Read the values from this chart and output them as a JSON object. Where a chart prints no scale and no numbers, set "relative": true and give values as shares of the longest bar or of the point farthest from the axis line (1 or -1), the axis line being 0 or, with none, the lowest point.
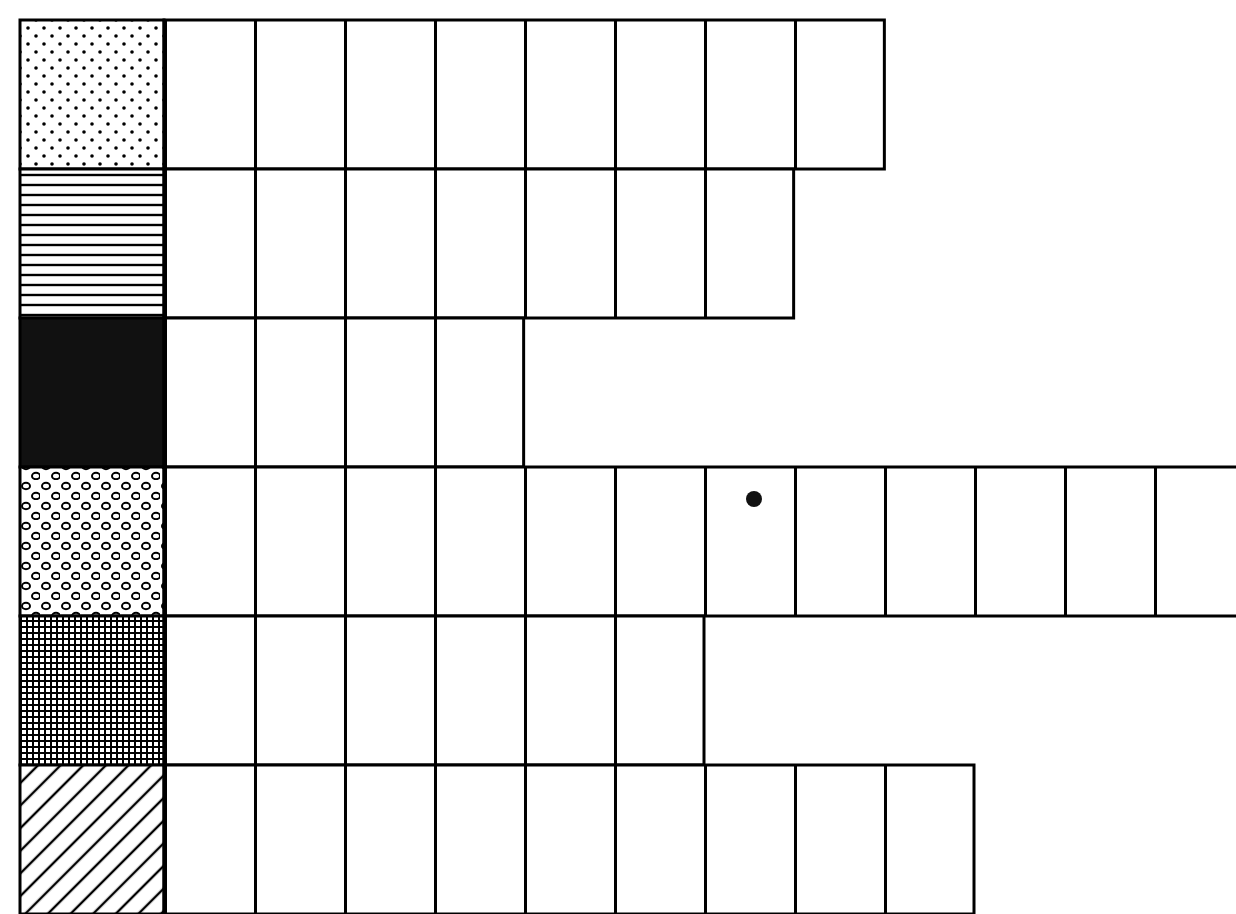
{
  "chart_data": {
    "type": "bar",
    "orientation": "horizontal",
    "relative": true,
    "categories": [
      null,
      null,
      null,
      null,
      null,
      null
    ],
    "values": [
      0.667,
      0.583,
      0.333,
      1,
      0.5,
      0.75
    ],
    "color": "#ffffff"
  }
}
